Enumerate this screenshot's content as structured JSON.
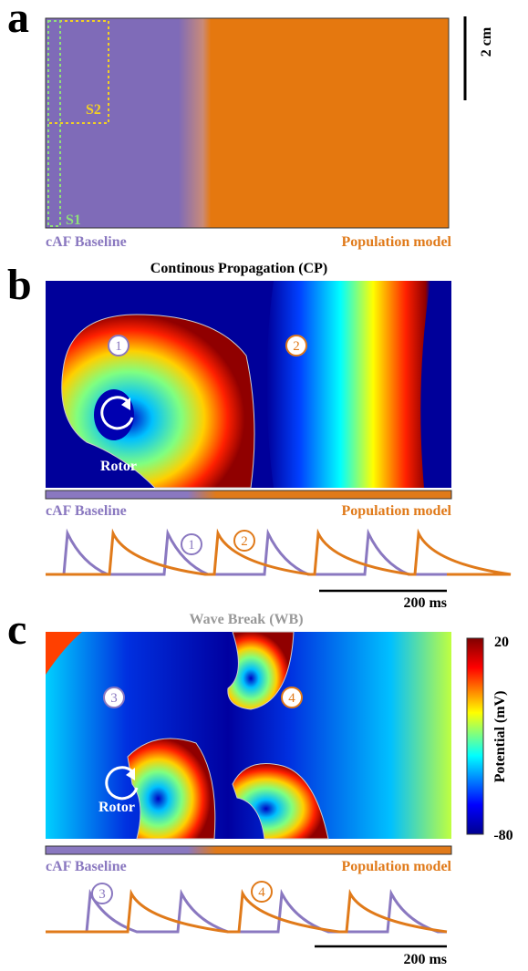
{
  "panel_a": {
    "label": "a",
    "scale_bar": "2 cm",
    "s2": "S2",
    "s1": "S1",
    "left_label": "cAF Baseline",
    "right_label": "Population model"
  },
  "panel_b": {
    "label": "b",
    "title": "Continous Propagation (CP)",
    "markers": [
      "1",
      "2"
    ],
    "rotor": "Rotor",
    "left_label": "cAF Baseline",
    "right_label": "Population model",
    "trace_markers": [
      "1",
      "2"
    ],
    "time_scale": "200 ms"
  },
  "panel_c": {
    "label": "c",
    "title": "Wave Break (WB)",
    "markers": [
      "3",
      "4"
    ],
    "rotor": "Rotor",
    "left_label": "cAF Baseline",
    "right_label": "Population model",
    "trace_markers": [
      "3",
      "4"
    ],
    "time_scale": "200 ms",
    "colorbar": {
      "label": "Potential (mV)",
      "max": "20",
      "min": "-80"
    }
  }
}
